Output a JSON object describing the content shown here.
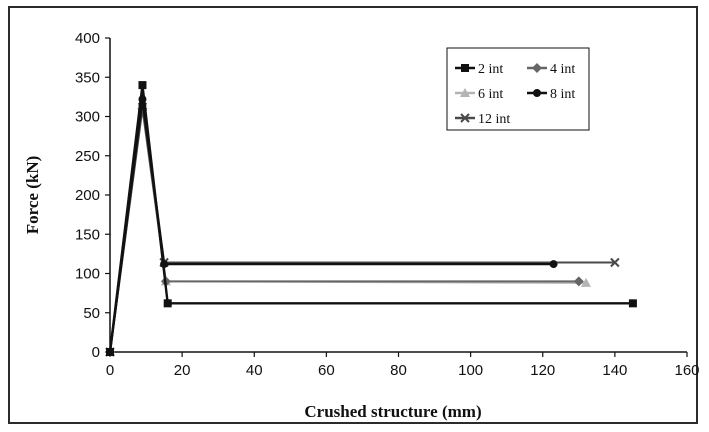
{
  "chart_data": {
    "type": "line",
    "title": "",
    "xlabel": "Crushed structure (mm)",
    "ylabel": "Force (kN)",
    "xlim": [
      0,
      160
    ],
    "ylim": [
      0,
      400
    ],
    "x_ticks": [
      "0",
      "20",
      "40",
      "60",
      "80",
      "100",
      "120",
      "140",
      "160"
    ],
    "y_ticks": [
      "0",
      "50",
      "100",
      "150",
      "200",
      "250",
      "300",
      "350",
      "400"
    ],
    "grid": false,
    "legend_position": "top-right",
    "series": [
      {
        "name": "2 int",
        "color": "#111111",
        "marker": "square",
        "points": [
          [
            0,
            0
          ],
          [
            9,
            340
          ],
          [
            16,
            62
          ],
          [
            145,
            62
          ]
        ]
      },
      {
        "name": "4 int",
        "color": "#666666",
        "marker": "diamond",
        "points": [
          [
            0,
            0
          ],
          [
            9,
            310
          ],
          [
            15.5,
            90
          ],
          [
            130,
            90
          ]
        ]
      },
      {
        "name": "6 int",
        "color": "#b4b4b4",
        "marker": "triangle",
        "points": [
          [
            0,
            0
          ],
          [
            9,
            318
          ],
          [
            15.5,
            90
          ],
          [
            132,
            88
          ]
        ]
      },
      {
        "name": "8 int",
        "color": "#111111",
        "marker": "circle",
        "points": [
          [
            0,
            0
          ],
          [
            9,
            322
          ],
          [
            15,
            112
          ],
          [
            123,
            112
          ]
        ]
      },
      {
        "name": "12 int",
        "color": "#4a4a4a",
        "marker": "cross",
        "points": [
          [
            0,
            0
          ],
          [
            9,
            312
          ],
          [
            15,
            114
          ],
          [
            140,
            114
          ]
        ]
      }
    ]
  }
}
